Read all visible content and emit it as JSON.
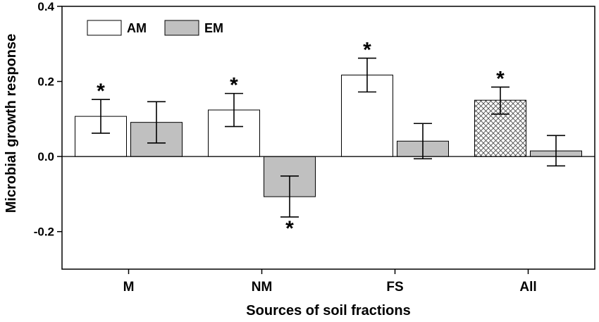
{
  "chart_data": {
    "type": "bar",
    "title": "",
    "xlabel": "Sources of soil fractions",
    "ylabel": "Microbial growth response",
    "ylim": [
      -0.3,
      0.4
    ],
    "yticks": [
      0.4,
      0.2,
      0.0,
      -0.2
    ],
    "ytick_labels": [
      "0.4",
      "0.2",
      "0.0",
      "-0.2"
    ],
    "categories": [
      "M",
      "NM",
      "FS",
      "All"
    ],
    "legend": {
      "placement": "top-left"
    },
    "colors": {
      "AM": "#ffffff",
      "EM": "#c0c0c0",
      "edge": "#000000"
    },
    "series": [
      {
        "name": "AM",
        "values": [
          0.107,
          0.124,
          0.217,
          0.15
        ],
        "err_low": [
          0.062,
          0.08,
          0.172,
          0.113
        ],
        "err_high": [
          0.152,
          0.168,
          0.262,
          0.185
        ],
        "significant": [
          true,
          true,
          true,
          true
        ],
        "hatched": [
          false,
          false,
          false,
          true
        ]
      },
      {
        "name": "EM",
        "values": [
          0.091,
          -0.107,
          0.041,
          0.015
        ],
        "err_low": [
          0.036,
          -0.161,
          -0.006,
          -0.025
        ],
        "err_high": [
          0.146,
          -0.052,
          0.088,
          0.056
        ],
        "significant": [
          false,
          true,
          false,
          false
        ],
        "hatched": [
          false,
          false,
          false,
          false
        ]
      }
    ],
    "annotation_symbol": "*"
  }
}
